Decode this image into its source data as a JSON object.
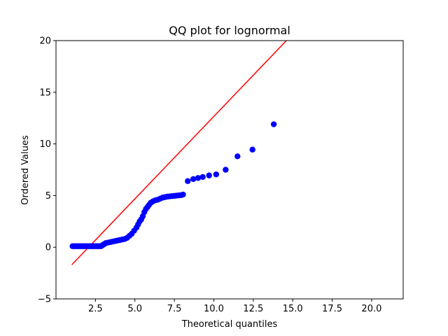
{
  "chart_data": {
    "type": "scatter",
    "title": "QQ plot for lognormal",
    "xlabel": "Theoretical quantiles",
    "ylabel": "Ordered Values",
    "xlim": [
      0.0,
      22.0
    ],
    "ylim": [
      -5,
      20
    ],
    "xticks": [
      2.5,
      5.0,
      7.5,
      10.0,
      12.5,
      15.0,
      17.5,
      20.0
    ],
    "xtick_labels": [
      "2.5",
      "5.0",
      "7.5",
      "10.0",
      "12.5",
      "15.0",
      "17.5",
      "20.0"
    ],
    "yticks": [
      -5,
      0,
      5,
      10,
      15,
      20
    ],
    "ytick_labels": [
      "−5",
      "0",
      "5",
      "10",
      "15",
      "20"
    ],
    "grid": false,
    "legend": "none",
    "colors": {
      "points": "#0000ff",
      "fit_line": "#ff0000",
      "axes": "#000000"
    },
    "fit_line": {
      "x": [
        1.0,
        14.6
      ],
      "y": [
        -1.7,
        20.0
      ]
    },
    "points": {
      "x": [
        1.05,
        1.15,
        1.25,
        1.35,
        1.45,
        1.55,
        1.65,
        1.75,
        1.85,
        1.95,
        2.05,
        2.15,
        2.25,
        2.35,
        2.45,
        2.55,
        2.65,
        2.75,
        2.85,
        2.95,
        3.05,
        3.15,
        3.3,
        3.45,
        3.6,
        3.75,
        3.9,
        4.05,
        4.2,
        4.35,
        4.5,
        4.65,
        4.8,
        4.95,
        5.1,
        5.2,
        5.3,
        5.4,
        5.5,
        5.6,
        5.7,
        5.8,
        5.9,
        6.0,
        6.15,
        6.3,
        6.45,
        6.6,
        6.75,
        6.9,
        7.05,
        7.2,
        7.35,
        7.5,
        7.65,
        7.8,
        7.95,
        8.05,
        8.35,
        8.7,
        9.0,
        9.3,
        9.7,
        10.15,
        10.75,
        11.5,
        12.45,
        13.8
      ],
      "y": [
        0.1,
        0.1,
        0.1,
        0.1,
        0.1,
        0.1,
        0.1,
        0.1,
        0.1,
        0.1,
        0.1,
        0.1,
        0.1,
        0.1,
        0.1,
        0.1,
        0.1,
        0.1,
        0.1,
        0.2,
        0.3,
        0.4,
        0.45,
        0.5,
        0.55,
        0.6,
        0.65,
        0.7,
        0.75,
        0.8,
        0.9,
        1.1,
        1.3,
        1.6,
        1.9,
        2.2,
        2.5,
        2.7,
        3.0,
        3.4,
        3.7,
        3.9,
        4.1,
        4.3,
        4.45,
        4.55,
        4.6,
        4.7,
        4.8,
        4.85,
        4.9,
        4.92,
        4.95,
        4.97,
        5.0,
        5.02,
        5.05,
        5.1,
        6.4,
        6.6,
        6.7,
        6.8,
        6.95,
        7.05,
        7.5,
        8.8,
        9.45,
        11.9
      ]
    }
  }
}
